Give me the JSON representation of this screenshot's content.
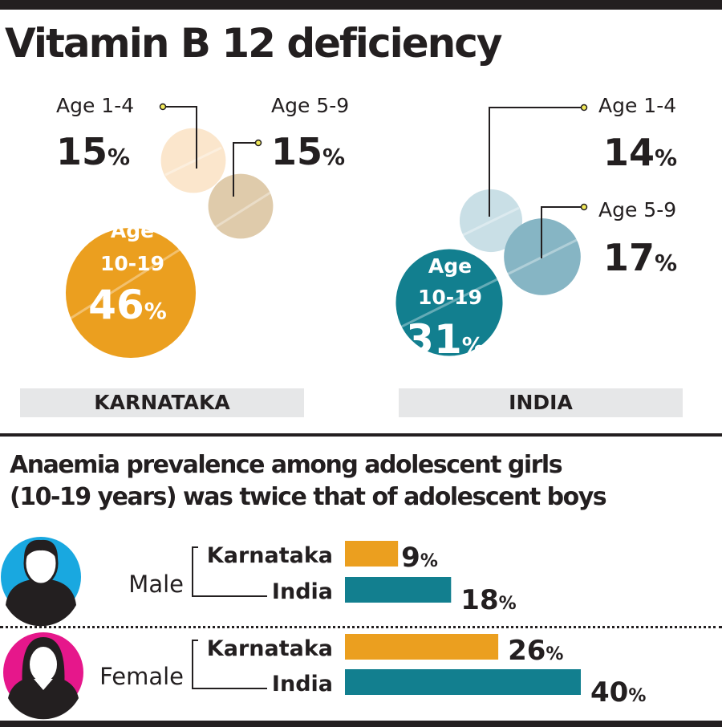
{
  "title": "Vitamin B 12 deficiency",
  "subtitle_lines": [
    "Anaemia prevalence among adolescent girls",
    "(10-19 years) was twice that of adolescent boys"
  ],
  "colors": {
    "karnataka_main": "#eb9f1f",
    "karnataka_age_1_4": "#fbe6cc",
    "karnataka_age_5_9": "#dfcbab",
    "india_main": "#127f8f",
    "india_age_1_4": "#c9dfe6",
    "india_age_5_9": "#86b5c4",
    "male_icon_bg": "#19a8e0",
    "female_icon_bg": "#e6178b",
    "band": "#e6e7e8",
    "text": "#231f20"
  },
  "chart_data": [
    {
      "type": "bubble",
      "title": "Vitamin B 12 deficiency",
      "panels": [
        {
          "region": "KARNATAKA",
          "groups": [
            {
              "label": "Age 1-4",
              "value": 15
            },
            {
              "label": "Age 5-9",
              "value": 15
            },
            {
              "label": "Age 10-19",
              "label_lines": [
                "Age",
                "10-19"
              ],
              "value": 46
            }
          ]
        },
        {
          "region": "INDIA",
          "groups": [
            {
              "label": "Age 1-4",
              "value": 14
            },
            {
              "label": "Age 5-9",
              "value": 17
            },
            {
              "label": "Age 10-19",
              "label_lines": [
                "Age",
                "10-19"
              ],
              "value": 31
            }
          ]
        }
      ],
      "unit": "%"
    },
    {
      "type": "bar",
      "orientation": "horizontal",
      "title": "Anaemia prevalence among adolescent girls (10-19 years) was twice that of adolescent boys",
      "categories": [
        "Male",
        "Female"
      ],
      "series": [
        {
          "name": "Karnataka",
          "values": [
            9,
            26
          ]
        },
        {
          "name": "India",
          "values": [
            18,
            40
          ]
        }
      ],
      "unit": "%"
    }
  ]
}
